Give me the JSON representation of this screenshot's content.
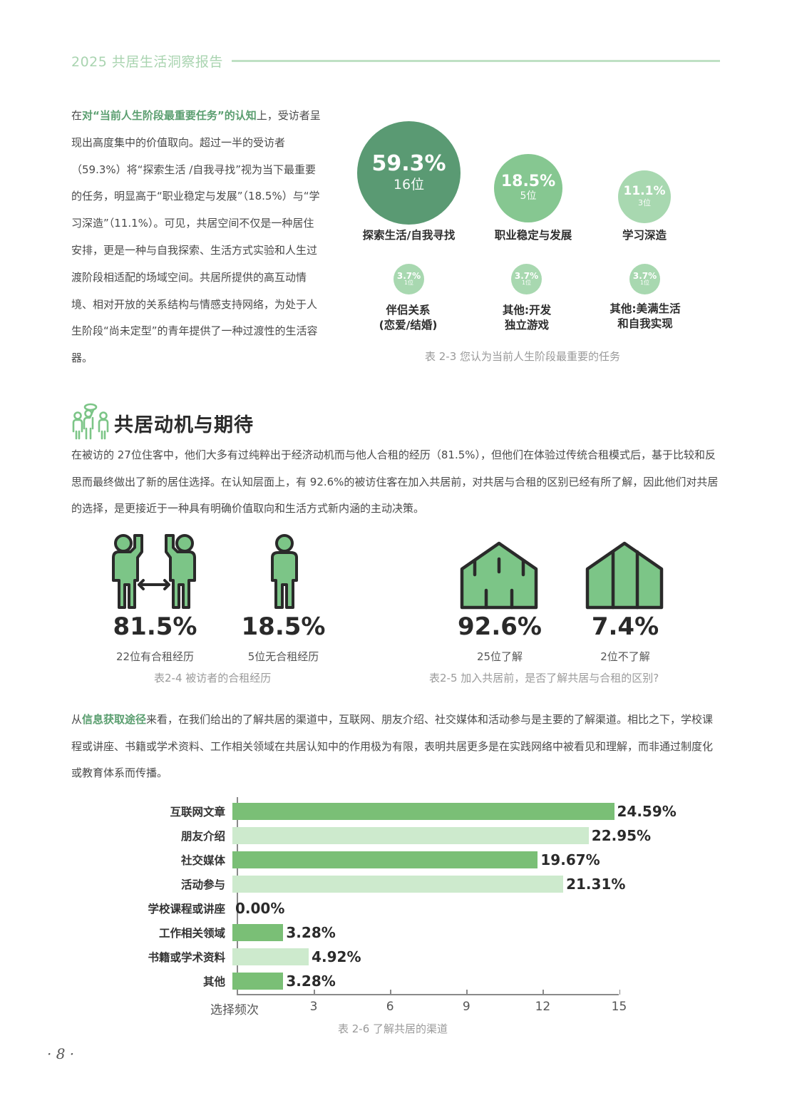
{
  "header": {
    "title": "2025 共居生活洞察报告"
  },
  "intro": {
    "prefix": "在",
    "highlight": "对“当前人生阶段最重要任务”的认知",
    "rest": "上，受访者呈现出高度集中的价值取向。超过一半的受访者（59.3%）将“探索生活 /自我寻找”视为当下最重要的任务，明显高于“职业稳定与发展”（18.5%）与“学习深造”（11.1%）。可见，共居空间不仅是一种居住安排，更是一种与自我探索、生活方式实验和人生过渡阶段相适配的场域空间。共居所提供的高互动情境、相对开放的关系结构与情感支持网络，为处于人生阶段“尚未定型”的青年提供了一种过渡性的生活容器。"
  },
  "tasks_figure": {
    "caption": "表 2-3 您认为当前人生阶段最重要的任务",
    "items": [
      {
        "pct": "59.3%",
        "count": "16位",
        "label": "探索生活/自我寻找",
        "color": "#5a9a73"
      },
      {
        "pct": "18.5%",
        "count": "5位",
        "label": "职业稳定与发展",
        "color": "#86c791"
      },
      {
        "pct": "11.1%",
        "count": "3位",
        "label": "学习深造",
        "color": "#a8d8b0"
      },
      {
        "pct": "3.7%",
        "count": "1位",
        "label_line1": "伴侣关系",
        "label_line2": "(恋爱/结婚)",
        "color": "#a8d8b0"
      },
      {
        "pct": "3.7%",
        "count": "1位",
        "label_line1": "其他:开发",
        "label_line2": "独立游戏",
        "color": "#a8d8b0"
      },
      {
        "pct": "3.7%",
        "count": "1位",
        "label_line1": "其他:美满生活",
        "label_line2": "和自我实现",
        "color": "#a8d8b0"
      }
    ]
  },
  "section": {
    "title": "共居动机与期待",
    "icon": "people-discussion-icon",
    "paragraph": "在被访的 27位住客中，他们大多有过纯粹出于经济动机而与他人合租的经历（81.5%），但他们在体验过传统合租模式后，基于比较和反思而最终做出了新的居住选择。在认知层面上，有 92.6%的被访住客在加入共居前，对共居与合租的区别已经有所了解，因此他们对共居的选择，是更接近于一种具有明确价值取向和生活方式新内涵的主动决策。"
  },
  "rent_figure": {
    "caption": "表2-4  被访者的合租经历",
    "stats": [
      {
        "value": "81.5%",
        "label": "22位有合租经历",
        "icon": "two-people-sharing-icon"
      },
      {
        "value": "18.5%",
        "label": "5位无合租经历",
        "icon": "single-person-icon"
      }
    ]
  },
  "aware_figure": {
    "caption": "表2-5 加入共居前，是否了解共居与合租的区别?",
    "stats": [
      {
        "value": "92.6%",
        "label": "25位了解",
        "icon": "house-shared-rooms-icon"
      },
      {
        "value": "7.4%",
        "label": "2位不了解",
        "icon": "house-divided-icon"
      }
    ]
  },
  "channels_text": {
    "prefix": "从",
    "highlight": "信息获取途径",
    "rest": "来看，在我们给出的了解共居的渠道中，互联网、朋友介绍、社交媒体和活动参与是主要的了解渠道。相比之下，学校课程或讲座、书籍或学术资料、工作相关领域在共居认知中的作用极为有限，表明共居更多是在实践网络中被看见和理解，而非通过制度化或教育体系而传播。"
  },
  "chart_data": {
    "type": "bar",
    "orientation": "horizontal",
    "title": "表 2-6 了解共居的渠道",
    "xlabel": "选择频次",
    "ylabel": "",
    "xlim": [
      0,
      15
    ],
    "xticks": [
      3,
      6,
      9,
      12,
      15
    ],
    "grid": false,
    "categories": [
      "互联网文章",
      "朋友介绍",
      "社交媒体",
      "活动参与",
      "学校课程或讲座",
      "工作相关领域",
      "书籍或学术资料",
      "其他"
    ],
    "values": [
      15,
      14,
      12,
      13,
      0,
      2,
      3,
      2
    ],
    "labels": [
      "24.59%",
      "22.95%",
      "19.67%",
      "21.31%",
      "0.00%",
      "3.28%",
      "4.92%",
      "3.28%"
    ],
    "colors": [
      "#7abf76",
      "#cdeacd",
      "#7abf76",
      "#cdeacd",
      "#7abf76",
      "#7abf76",
      "#cdeacd",
      "#7abf76"
    ]
  },
  "footer": {
    "page_number": "· 8 ·"
  }
}
